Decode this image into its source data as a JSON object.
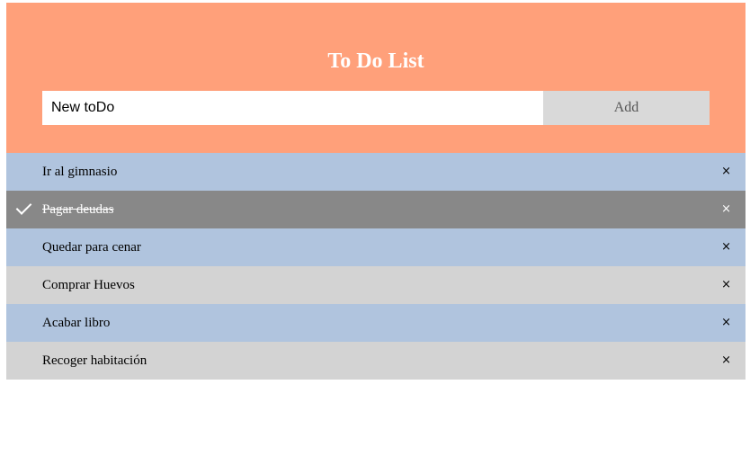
{
  "header": {
    "title": "To Do List",
    "input_placeholder": "New toDo",
    "add_label": "Add"
  },
  "todos": [
    {
      "text": "Ir al gimnasio",
      "checked": false,
      "close": "×"
    },
    {
      "text": "Pagar deudas",
      "checked": true,
      "close": "×"
    },
    {
      "text": "Quedar para cenar",
      "checked": false,
      "close": "×"
    },
    {
      "text": "Comprar Huevos",
      "checked": false,
      "close": "×"
    },
    {
      "text": "Acabar libro",
      "checked": false,
      "close": "×"
    },
    {
      "text": "Recoger habitación",
      "checked": false,
      "close": "×"
    }
  ],
  "colors": {
    "header_bg": "#ffa07a",
    "row_odd": "#b0c4de",
    "row_even": "#d3d3d3",
    "row_checked": "#888888"
  }
}
